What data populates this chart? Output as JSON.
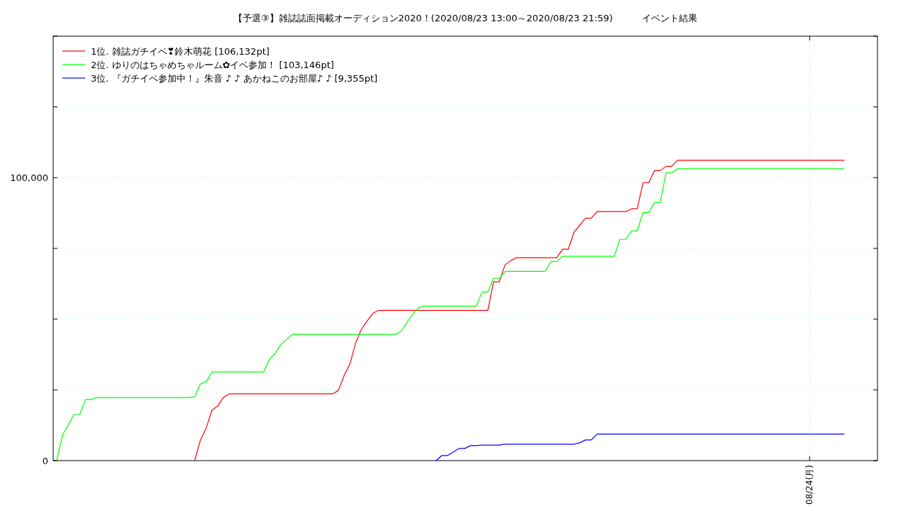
{
  "chart_data": {
    "type": "line",
    "title": "【予選③】雑誌誌面掲載オーディション2020！(2020/08/23 13:00～2020/08/23 21:59)          イベント結果",
    "categories": [
      null,
      null,
      null,
      null,
      null,
      null,
      null,
      null,
      null,
      null,
      null,
      null,
      null,
      null,
      null,
      null,
      null,
      null,
      null,
      null,
      null,
      null,
      null,
      null,
      null,
      null,
      null,
      null,
      null,
      null,
      null,
      null,
      null,
      null,
      null,
      null,
      null,
      null,
      null,
      null,
      null,
      null,
      null,
      null,
      null,
      null,
      null,
      null,
      null,
      null,
      null,
      null,
      null,
      null,
      null,
      null,
      null,
      null,
      null,
      null,
      null,
      null,
      null,
      null,
      null,
      null,
      null,
      null,
      null,
      null,
      null,
      null,
      null,
      null,
      null,
      null,
      null,
      null,
      null,
      null,
      null,
      null,
      null,
      null,
      null,
      null,
      null,
      null,
      null,
      null,
      null,
      null,
      null,
      null,
      null,
      null,
      null,
      null,
      null,
      null,
      null,
      null,
      null,
      null,
      null,
      null,
      null,
      null,
      null,
      null,
      null,
      null,
      null,
      null,
      null,
      null,
      null,
      null,
      null,
      null,
      null,
      null,
      null,
      null,
      null,
      null,
      null,
      null,
      null,
      null,
      null,
      "08/24(月)",
      null,
      null,
      null,
      null,
      null,
      null
    ],
    "ylim": [
      0,
      150000
    ],
    "yticks": [
      {
        "value": 0,
        "label": "0"
      },
      {
        "value": 25000,
        "label": null
      },
      {
        "value": 50000,
        "label": null
      },
      {
        "value": 75000,
        "label": null
      },
      {
        "value": 100000,
        "label": "100,000"
      },
      {
        "value": 125000,
        "label": null
      },
      {
        "value": 150000,
        "label": null
      }
    ],
    "grid": true,
    "legend": "top left",
    "line_style": "solid",
    "marker": "none",
    "series": [
      {
        "name": "1位. 雑誌ガチイベ❣鈴木萌花 [106,132pt]",
        "color": "#ff0000",
        "values": [
          null,
          null,
          null,
          null,
          null,
          null,
          null,
          null,
          null,
          null,
          null,
          null,
          null,
          null,
          null,
          null,
          null,
          null,
          null,
          null,
          null,
          null,
          null,
          null,
          0,
          7300,
          11500,
          17800,
          19300,
          22300,
          23600,
          23600,
          23600,
          23600,
          23600,
          23600,
          23600,
          23600,
          23600,
          23600,
          23600,
          23600,
          23600,
          23600,
          23600,
          23600,
          23600,
          23600,
          23600,
          24800,
          30100,
          34100,
          41600,
          46400,
          49300,
          52100,
          53100,
          53100,
          53100,
          53100,
          53100,
          53100,
          53100,
          53100,
          53100,
          53100,
          53100,
          53100,
          53100,
          53100,
          53100,
          53100,
          53100,
          53100,
          53100,
          53100,
          63200,
          63200,
          69200,
          70700,
          71700,
          71700,
          71700,
          71700,
          71700,
          71700,
          71700,
          71700,
          74700,
          74700,
          80700,
          83200,
          85700,
          85700,
          88000,
          88000,
          88000,
          88000,
          88000,
          88000,
          89000,
          89000,
          98200,
          98200,
          102500,
          102500,
          104000,
          104000,
          106132,
          106132,
          106132,
          106132,
          106132,
          106132,
          106132,
          106132,
          106132,
          106132,
          106132,
          106132,
          106132,
          106132,
          106132,
          106132,
          106132,
          106132,
          106132,
          106132,
          106132,
          106132,
          106132,
          106132,
          106132,
          106132,
          106132,
          106132,
          106132,
          106132
        ]
      },
      {
        "name": "2位. ゆりのはちゃめちゃルーム✿イベ参加！ [103,146pt]",
        "color": "#00ff00",
        "values": [
          0,
          9000,
          12600,
          16300,
          16300,
          21600,
          21600,
          22300,
          22300,
          22300,
          22300,
          22300,
          22300,
          22300,
          22300,
          22300,
          22300,
          22300,
          22300,
          22300,
          22300,
          22300,
          22300,
          22300,
          22600,
          27100,
          27800,
          31300,
          31300,
          31300,
          31300,
          31300,
          31300,
          31300,
          31300,
          31300,
          31300,
          35800,
          37800,
          41100,
          42800,
          44600,
          44600,
          44600,
          44600,
          44600,
          44600,
          44600,
          44600,
          44600,
          44600,
          44600,
          44600,
          44600,
          44600,
          44600,
          44600,
          44600,
          44600,
          44600,
          45900,
          49100,
          51900,
          54100,
          54600,
          54600,
          54600,
          54600,
          54600,
          54600,
          54600,
          54600,
          54600,
          54600,
          59600,
          59600,
          64400,
          64400,
          66900,
          66900,
          66900,
          66900,
          66900,
          66900,
          66900,
          66900,
          70400,
          70400,
          72200,
          72200,
          72200,
          72200,
          72200,
          72200,
          72200,
          72200,
          72200,
          72200,
          78200,
          78200,
          81200,
          81200,
          87700,
          87700,
          91200,
          91200,
          101700,
          101700,
          103146,
          103146,
          103146,
          103146,
          103146,
          103146,
          103146,
          103146,
          103146,
          103146,
          103146,
          103146,
          103146,
          103146,
          103146,
          103146,
          103146,
          103146,
          103146,
          103146,
          103146,
          103146,
          103146,
          103146,
          103146,
          103146,
          103146,
          103146,
          103146,
          103146
        ]
      },
      {
        "name": "3位. 『ガチイベ参加中！』朱音 ♪ ♪ あかねこのお部屋♪ ♪ [9,355pt]",
        "color": "#0000ff",
        "values": [
          null,
          null,
          null,
          null,
          null,
          null,
          null,
          null,
          null,
          null,
          null,
          null,
          null,
          null,
          null,
          null,
          null,
          null,
          null,
          null,
          null,
          null,
          null,
          null,
          null,
          null,
          null,
          null,
          null,
          null,
          null,
          null,
          null,
          null,
          null,
          null,
          null,
          null,
          null,
          null,
          null,
          null,
          null,
          null,
          null,
          null,
          null,
          null,
          null,
          null,
          null,
          null,
          null,
          null,
          null,
          null,
          null,
          null,
          null,
          null,
          null,
          null,
          null,
          null,
          null,
          null,
          0,
          1800,
          1800,
          3000,
          4300,
          4300,
          5300,
          5300,
          5500,
          5500,
          5500,
          5500,
          5800,
          5800,
          5800,
          5800,
          5800,
          5800,
          5800,
          5800,
          5800,
          5800,
          5800,
          5800,
          5800,
          6300,
          7300,
          7300,
          9355,
          9355,
          9355,
          9355,
          9355,
          9355,
          9355,
          9355,
          9355,
          9355,
          9355,
          9355,
          9355,
          9355,
          9355,
          9355,
          9355,
          9355,
          9355,
          9355,
          9355,
          9355,
          9355,
          9355,
          9355,
          9355,
          9355,
          9355,
          9355,
          9355,
          9355,
          9355,
          9355,
          9355,
          9355,
          9355,
          9355,
          9355,
          9355,
          9355,
          9355,
          9355,
          9355,
          9355
        ]
      }
    ]
  }
}
